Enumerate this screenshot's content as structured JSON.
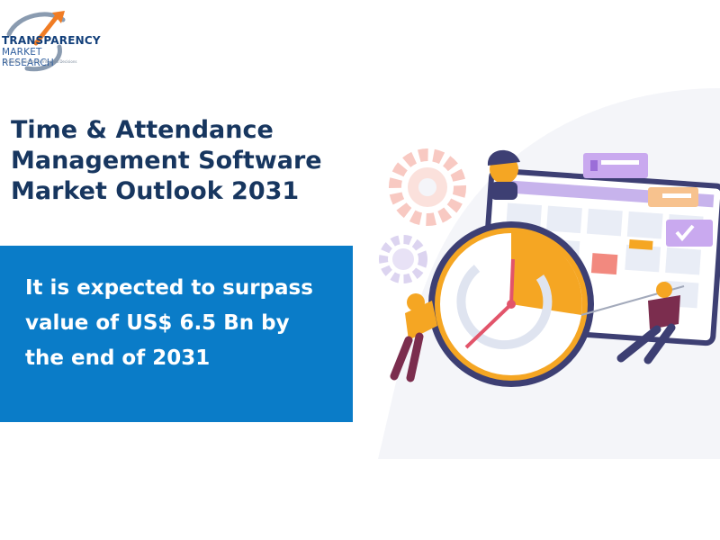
{
  "logo": {
    "line1": "TRANSPARENCY",
    "line2": "MARKET RESEARCH",
    "tagline": "Strategic Insights for Informed Decisions"
  },
  "title": {
    "line1": "Time & Attendance",
    "line2": "Management Software",
    "line3": "Market Outlook 2031"
  },
  "highlight": {
    "line1": "It is expected to surpass",
    "line2": "value of US$ 6.5 Bn by",
    "line3": "the end of 2031"
  },
  "illustration": {
    "icons": [
      "clock-icon",
      "calendar-board",
      "gear-icon",
      "person-pushing",
      "person-pulling",
      "chat-bubble-icon",
      "checkmark-icon"
    ]
  },
  "colors": {
    "brand_navy": "#17365f",
    "highlight_blue": "#0a7cc8",
    "accent_orange": "#f5a623",
    "accent_purple": "#b48ce0"
  }
}
